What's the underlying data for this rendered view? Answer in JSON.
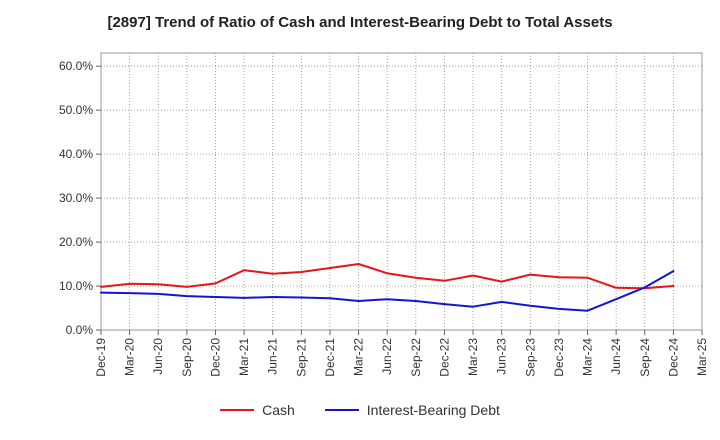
{
  "chart_data": {
    "type": "line",
    "title": "[2897]  Trend of Ratio of Cash and Interest-Bearing Debt to Total Assets",
    "xlabel": "",
    "ylabel": "",
    "x": [
      "Dec-19",
      "Mar-20",
      "Jun-20",
      "Sep-20",
      "Dec-20",
      "Mar-21",
      "Jun-21",
      "Sep-21",
      "Dec-21",
      "Mar-22",
      "Jun-22",
      "Sep-22",
      "Dec-22",
      "Mar-23",
      "Jun-23",
      "Sep-23",
      "Dec-23",
      "Mar-24",
      "Jun-24",
      "Sep-24",
      "Dec-24",
      "Mar-25"
    ],
    "y_ticks": [
      "0.0%",
      "10.0%",
      "20.0%",
      "30.0%",
      "40.0%",
      "50.0%",
      "60.0%"
    ],
    "ylim": [
      0,
      63
    ],
    "grid": true,
    "legend_position": "bottom",
    "series": [
      {
        "name": "Cash",
        "color": "#e8141b",
        "values": [
          9.8,
          10.5,
          10.4,
          9.8,
          10.6,
          13.6,
          12.8,
          13.2,
          14.1,
          15.0,
          12.9,
          11.9,
          11.2,
          12.4,
          11.0,
          12.6,
          12.0,
          11.9,
          9.6,
          9.5,
          10.0,
          null
        ]
      },
      {
        "name": "Interest-Bearing Debt",
        "color": "#1414d4",
        "values": [
          8.5,
          8.4,
          8.2,
          7.7,
          7.5,
          7.3,
          7.5,
          7.4,
          7.2,
          6.6,
          7.0,
          6.6,
          5.9,
          5.3,
          6.4,
          5.5,
          4.8,
          4.4,
          7.0,
          9.7,
          13.4,
          null
        ]
      }
    ]
  }
}
